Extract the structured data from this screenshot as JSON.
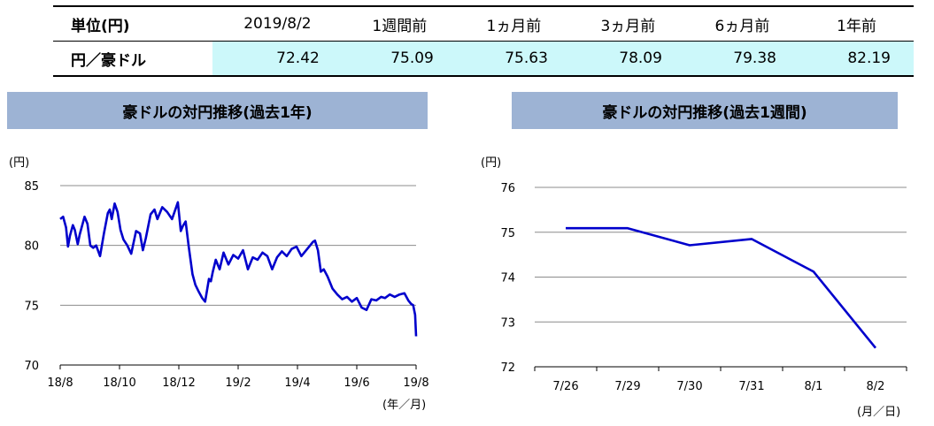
{
  "table": {
    "unit_label": "単位(円)",
    "columns": [
      "2019/8/2",
      "1週間前",
      "1ヵ月前",
      "3ヵ月前",
      "6ヵ月前",
      "1年前"
    ],
    "row_label": "円／豪ドル",
    "values": [
      "72.42",
      "75.09",
      "75.63",
      "78.09",
      "79.38",
      "82.19"
    ]
  },
  "chart_data": [
    {
      "type": "line",
      "title": "豪ドルの対円推移(過去1年)",
      "ylabel": "(円)",
      "xlabel": "(年／月)",
      "ylim": [
        70,
        85
      ],
      "yticks": [
        "70",
        "75",
        "80",
        "85"
      ],
      "xticks": [
        "18/8",
        "18/10",
        "18/12",
        "19/2",
        "19/4",
        "19/6",
        "19/8"
      ],
      "x_range": [
        "2018-08-01",
        "2019-08-02"
      ],
      "grid": true,
      "line_color": "#0000cc",
      "series": [
        {
          "x": [
            "2018-08-01",
            "2018-08-04",
            "2018-08-07",
            "2018-08-09",
            "2018-08-11",
            "2018-08-14",
            "2018-08-16",
            "2018-08-19",
            "2018-08-21",
            "2018-08-24",
            "2018-08-26",
            "2018-08-29",
            "2018-09-01",
            "2018-09-04",
            "2018-09-07",
            "2018-09-11",
            "2018-09-15",
            "2018-09-19",
            "2018-09-21",
            "2018-09-23",
            "2018-09-26",
            "2018-09-29",
            "2018-10-02",
            "2018-10-05",
            "2018-10-09",
            "2018-10-13",
            "2018-10-18",
            "2018-10-22",
            "2018-10-25",
            "2018-10-28",
            "2018-11-02",
            "2018-11-06",
            "2018-11-09",
            "2018-11-14",
            "2018-11-19",
            "2018-11-24",
            "2018-11-30",
            "2018-12-03",
            "2018-12-05",
            "2018-12-08",
            "2018-12-11",
            "2018-12-15",
            "2018-12-18",
            "2018-12-21",
            "2018-12-25",
            "2018-12-28",
            "2019-01-01",
            "2019-01-03",
            "2019-01-05",
            "2019-01-08",
            "2019-01-12",
            "2019-01-16",
            "2019-01-21",
            "2019-01-26",
            "2019-01-31",
            "2019-02-05",
            "2019-02-10",
            "2019-02-15",
            "2019-02-20",
            "2019-02-25",
            "2019-03-02",
            "2019-03-07",
            "2019-03-12",
            "2019-03-17",
            "2019-03-22",
            "2019-03-27",
            "2019-04-01",
            "2019-04-06",
            "2019-04-11",
            "2019-04-16",
            "2019-04-18",
            "2019-04-20",
            "2019-04-23",
            "2019-04-26",
            "2019-04-29",
            "2019-05-03",
            "2019-05-08",
            "2019-05-13",
            "2019-05-18",
            "2019-05-23",
            "2019-05-28",
            "2019-06-02",
            "2019-06-07",
            "2019-06-12",
            "2019-06-17",
            "2019-06-22",
            "2019-06-27",
            "2019-07-01",
            "2019-07-06",
            "2019-07-11",
            "2019-07-16",
            "2019-07-21",
            "2019-07-25",
            "2019-07-28",
            "2019-07-30",
            "2019-08-01",
            "2019-08-02"
          ],
          "y": [
            82.2,
            82.4,
            81.5,
            79.9,
            80.8,
            81.7,
            81.3,
            80.1,
            80.9,
            81.8,
            82.4,
            81.8,
            80.0,
            79.8,
            80.0,
            79.1,
            81.0,
            82.7,
            83.0,
            82.2,
            83.5,
            82.8,
            81.3,
            80.5,
            80.0,
            79.3,
            81.2,
            81.0,
            79.6,
            80.6,
            82.6,
            83.0,
            82.2,
            83.2,
            82.8,
            82.2,
            83.6,
            81.2,
            81.6,
            82.0,
            80.0,
            77.6,
            76.7,
            76.2,
            75.6,
            75.3,
            77.2,
            77.0,
            77.8,
            78.8,
            78.0,
            79.4,
            78.4,
            79.2,
            78.9,
            79.6,
            78.0,
            79.0,
            78.8,
            79.4,
            79.1,
            78.0,
            79.0,
            79.5,
            79.1,
            79.7,
            79.9,
            79.1,
            79.6,
            80.1,
            80.3,
            80.4,
            79.6,
            77.8,
            78.0,
            77.4,
            76.4,
            75.9,
            75.5,
            75.7,
            75.3,
            75.6,
            74.8,
            74.6,
            75.5,
            75.4,
            75.7,
            75.6,
            75.9,
            75.7,
            75.9,
            76.0,
            75.4,
            75.1,
            75.0,
            74.2,
            72.4
          ]
        }
      ]
    },
    {
      "type": "line",
      "title": "豪ドルの対円推移(過去1週間)",
      "ylabel": "(円)",
      "xlabel": "(月／日)",
      "ylim": [
        72,
        76
      ],
      "yticks": [
        "72",
        "73",
        "74",
        "75",
        "76"
      ],
      "grid": true,
      "line_color": "#0000cc",
      "categories": [
        "7/26",
        "7/29",
        "7/30",
        "7/31",
        "8/1",
        "8/2"
      ],
      "series": [
        {
          "values": [
            75.09,
            75.09,
            74.71,
            74.85,
            74.12,
            72.42
          ]
        }
      ]
    }
  ]
}
